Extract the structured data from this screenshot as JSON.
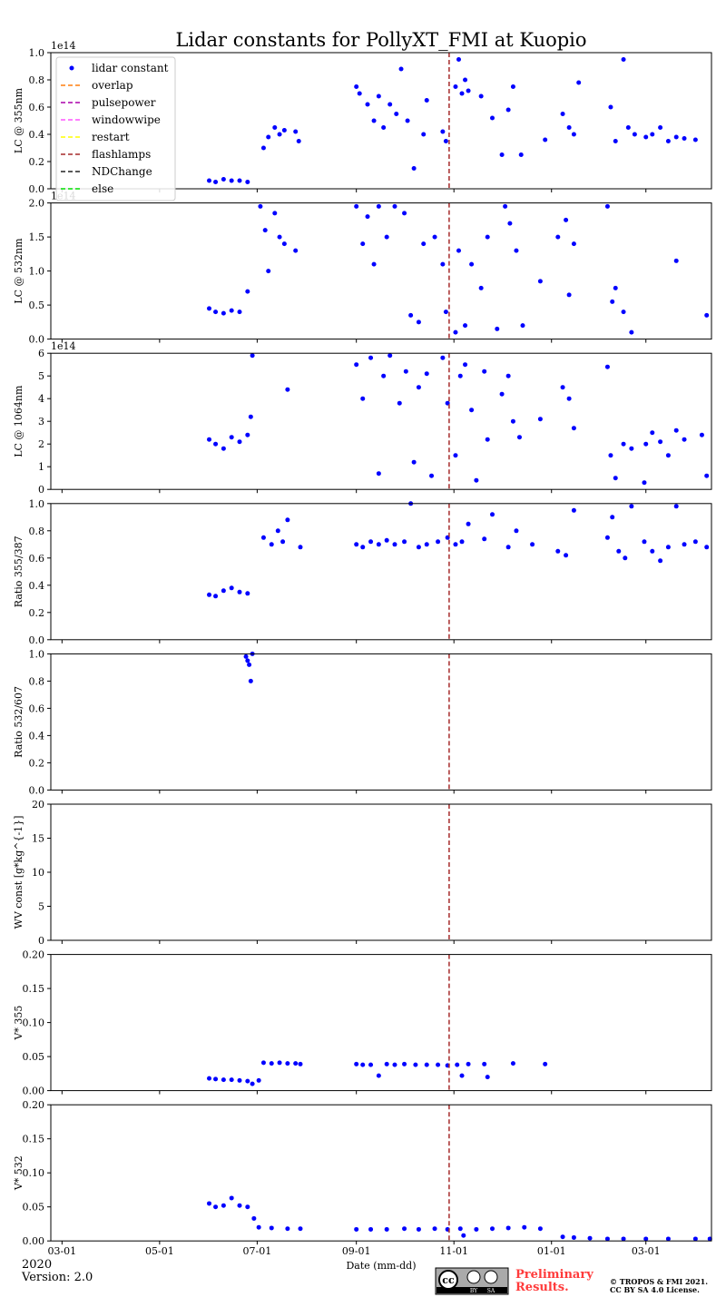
{
  "title": "Lidar constants for PollyXT_FMI at Kuopio",
  "x_axis": {
    "xlabel": "Date (mm-dd)",
    "xlim": [
      "2020-02-23",
      "2021-04-11"
    ],
    "xticks": [
      {
        "value": "2020-03-01",
        "label": "03-01"
      },
      {
        "value": "2020-05-01",
        "label": "05-01"
      },
      {
        "value": "2020-07-01",
        "label": "07-01"
      },
      {
        "value": "2020-09-01",
        "label": "09-01"
      },
      {
        "value": "2020-11-01",
        "label": "11-01"
      },
      {
        "value": "2021-01-01",
        "label": "01-01"
      },
      {
        "value": "2021-03-01",
        "label": "03-01"
      }
    ]
  },
  "legend": "upper left",
  "events": [
    {
      "name": "overlap",
      "color": "#ff7f0e",
      "x": []
    },
    {
      "name": "pulsepower",
      "color": "#aa00aa",
      "x": []
    },
    {
      "name": "windowwipe",
      "color": "#ff55ff",
      "x": []
    },
    {
      "name": "restart",
      "color": "#ffff00",
      "x": []
    },
    {
      "name": "flashlamps",
      "color": "#a52a2a",
      "x": [
        "2020-10-29"
      ]
    },
    {
      "name": "NDChange",
      "color": "#222222",
      "x": []
    },
    {
      "name": "else",
      "color": "#00dd00",
      "x": []
    }
  ],
  "chart_data": [
    {
      "type": "scatter",
      "ylabel": "LC @ 355nm",
      "offset_text": "1e14",
      "ylim": [
        0,
        1
      ],
      "yticks": [
        {
          "value": 0,
          "label": "0.0"
        },
        0.2,
        0.4,
        0.6,
        0.8,
        {
          "value": 1,
          "label": "1.0"
        }
      ],
      "series": [
        {
          "name": "lidar constant",
          "color": "#0000ff",
          "x": [
            "2020-06-01",
            "2020-06-05",
            "2020-06-10",
            "2020-06-15",
            "2020-06-20",
            "2020-06-25",
            "2020-07-05",
            "2020-07-08",
            "2020-07-12",
            "2020-07-15",
            "2020-07-18",
            "2020-07-25",
            "2020-07-27",
            "2020-09-01",
            "2020-09-03",
            "2020-09-08",
            "2020-09-12",
            "2020-09-15",
            "2020-09-18",
            "2020-09-22",
            "2020-09-26",
            "2020-09-29",
            "2020-10-03",
            "2020-10-07",
            "2020-10-13",
            "2020-10-15",
            "2020-10-25",
            "2020-10-27",
            "2020-11-02",
            "2020-11-04",
            "2020-11-06",
            "2020-11-08",
            "2020-11-10",
            "2020-11-18",
            "2020-11-25",
            "2020-12-01",
            "2020-12-05",
            "2020-12-08",
            "2020-12-13",
            "2020-12-28",
            "2021-01-08",
            "2021-01-12",
            "2021-01-15",
            "2021-01-18",
            "2021-02-07",
            "2021-02-10",
            "2021-02-15",
            "2021-02-18",
            "2021-02-22",
            "2021-03-01",
            "2021-03-05",
            "2021-03-10",
            "2021-03-15",
            "2021-03-20",
            "2021-03-25",
            "2021-04-01"
          ],
          "values": [
            0.06,
            0.05,
            0.07,
            0.06,
            0.06,
            0.05,
            0.3,
            0.38,
            0.45,
            0.4,
            0.43,
            0.42,
            0.35,
            0.75,
            0.7,
            0.62,
            0.5,
            0.68,
            0.45,
            0.62,
            0.55,
            0.88,
            0.5,
            0.15,
            0.4,
            0.65,
            0.42,
            0.35,
            0.75,
            0.95,
            0.7,
            0.8,
            0.72,
            0.68,
            0.52,
            0.25,
            0.58,
            0.75,
            0.25,
            0.36,
            0.55,
            0.45,
            0.4,
            0.78,
            0.6,
            0.35,
            0.95,
            0.45,
            0.4,
            0.38,
            0.4,
            0.45,
            0.35,
            0.38,
            0.37,
            0.36
          ]
        }
      ]
    },
    {
      "type": "scatter",
      "ylabel": "LC @ 532nm",
      "offset_text": "1e14",
      "ylim": [
        0,
        2
      ],
      "yticks": [
        {
          "value": 0,
          "label": "0.0"
        },
        0.5,
        {
          "value": 1,
          "label": "1.0"
        },
        1.5,
        {
          "value": 2,
          "label": "2.0"
        }
      ],
      "series": [
        {
          "name": "lidar constant",
          "color": "#0000ff",
          "x": [
            "2020-06-01",
            "2020-06-05",
            "2020-06-10",
            "2020-06-15",
            "2020-06-20",
            "2020-06-25",
            "2020-07-03",
            "2020-07-06",
            "2020-07-08",
            "2020-07-12",
            "2020-07-15",
            "2020-07-18",
            "2020-07-25",
            "2020-09-01",
            "2020-09-05",
            "2020-09-08",
            "2020-09-12",
            "2020-09-15",
            "2020-09-20",
            "2020-09-25",
            "2020-10-01",
            "2020-10-05",
            "2020-10-10",
            "2020-10-13",
            "2020-10-20",
            "2020-10-25",
            "2020-10-27",
            "2020-11-02",
            "2020-11-04",
            "2020-11-08",
            "2020-11-12",
            "2020-11-18",
            "2020-11-22",
            "2020-11-28",
            "2020-12-03",
            "2020-12-06",
            "2020-12-10",
            "2020-12-14",
            "2020-12-25",
            "2021-01-05",
            "2021-01-10",
            "2021-01-12",
            "2021-01-15",
            "2021-02-05",
            "2021-02-08",
            "2021-02-10",
            "2021-02-15",
            "2021-02-20",
            "2021-03-20",
            "2021-04-08"
          ],
          "values": [
            0.45,
            0.4,
            0.38,
            0.42,
            0.4,
            0.7,
            1.95,
            1.6,
            1.0,
            1.85,
            1.5,
            1.4,
            1.3,
            1.95,
            1.4,
            1.8,
            1.1,
            1.95,
            1.5,
            1.95,
            1.85,
            0.35,
            0.25,
            1.4,
            1.5,
            1.1,
            0.4,
            0.1,
            1.3,
            0.2,
            1.1,
            0.75,
            1.5,
            0.15,
            1.95,
            1.7,
            1.3,
            0.2,
            0.85,
            1.5,
            1.75,
            0.65,
            1.4,
            1.95,
            0.55,
            0.75,
            0.4,
            0.1,
            1.15,
            0.35
          ]
        }
      ]
    },
    {
      "type": "scatter",
      "ylabel": "LC @ 1064nm",
      "offset_text": "1e14",
      "ylim": [
        0,
        6
      ],
      "yticks": [
        0,
        1,
        2,
        3,
        4,
        5,
        6
      ],
      "series": [
        {
          "name": "lidar constant",
          "color": "#0000ff",
          "x": [
            "2020-06-01",
            "2020-06-05",
            "2020-06-10",
            "2020-06-15",
            "2020-06-20",
            "2020-06-25",
            "2020-06-27",
            "2020-06-28",
            "2020-07-20",
            "2020-09-01",
            "2020-09-05",
            "2020-09-10",
            "2020-09-15",
            "2020-09-18",
            "2020-09-22",
            "2020-09-28",
            "2020-10-02",
            "2020-10-07",
            "2020-10-10",
            "2020-10-15",
            "2020-10-18",
            "2020-10-25",
            "2020-10-28",
            "2020-11-02",
            "2020-11-05",
            "2020-11-08",
            "2020-11-12",
            "2020-11-15",
            "2020-11-20",
            "2020-11-22",
            "2020-12-01",
            "2020-12-05",
            "2020-12-08",
            "2020-12-12",
            "2020-12-25",
            "2021-01-08",
            "2021-01-12",
            "2021-01-15",
            "2021-02-05",
            "2021-02-07",
            "2021-02-10",
            "2021-02-15",
            "2021-02-20",
            "2021-02-28",
            "2021-03-01",
            "2021-03-05",
            "2021-03-10",
            "2021-03-15",
            "2021-03-20",
            "2021-03-25",
            "2021-04-05",
            "2021-04-08"
          ],
          "values": [
            2.2,
            2.0,
            1.8,
            2.3,
            2.1,
            2.4,
            3.2,
            5.9,
            4.4,
            5.5,
            4.0,
            5.8,
            0.7,
            5.0,
            5.9,
            3.8,
            5.2,
            1.2,
            4.5,
            5.1,
            0.6,
            5.8,
            3.8,
            1.5,
            5.0,
            5.5,
            3.5,
            0.4,
            5.2,
            2.2,
            4.2,
            5.0,
            3.0,
            2.3,
            3.1,
            4.5,
            4.0,
            2.7,
            5.4,
            1.5,
            0.5,
            2.0,
            1.8,
            0.3,
            2.0,
            2.5,
            2.1,
            1.5,
            2.6,
            2.2,
            2.4,
            0.6
          ]
        }
      ]
    },
    {
      "type": "scatter",
      "ylabel": "Ratio 355/387",
      "ylim": [
        0,
        1
      ],
      "yticks": [
        {
          "value": 0,
          "label": "0.0"
        },
        0.2,
        0.4,
        0.6,
        0.8,
        {
          "value": 1,
          "label": "1.0"
        }
      ],
      "series": [
        {
          "name": "lidar constant",
          "color": "#0000ff",
          "x": [
            "2020-06-01",
            "2020-06-05",
            "2020-06-10",
            "2020-06-15",
            "2020-06-20",
            "2020-06-25",
            "2020-07-05",
            "2020-07-10",
            "2020-07-14",
            "2020-07-17",
            "2020-07-20",
            "2020-07-28",
            "2020-09-01",
            "2020-09-05",
            "2020-09-10",
            "2020-09-15",
            "2020-09-20",
            "2020-09-25",
            "2020-10-01",
            "2020-10-05",
            "2020-10-10",
            "2020-10-15",
            "2020-10-22",
            "2020-10-28",
            "2020-11-02",
            "2020-11-06",
            "2020-11-10",
            "2020-11-20",
            "2020-11-25",
            "2020-12-05",
            "2020-12-10",
            "2020-12-20",
            "2021-01-05",
            "2021-01-10",
            "2021-01-15",
            "2021-02-05",
            "2021-02-08",
            "2021-02-12",
            "2021-02-16",
            "2021-02-20",
            "2021-02-28",
            "2021-03-05",
            "2021-03-10",
            "2021-03-15",
            "2021-03-20",
            "2021-03-25",
            "2021-04-01",
            "2021-04-08"
          ],
          "values": [
            0.33,
            0.32,
            0.36,
            0.38,
            0.35,
            0.34,
            0.75,
            0.7,
            0.8,
            0.72,
            0.88,
            0.68,
            0.7,
            0.68,
            0.72,
            0.7,
            0.73,
            0.7,
            0.72,
            1.0,
            0.68,
            0.7,
            0.72,
            0.75,
            0.7,
            0.72,
            0.85,
            0.74,
            0.92,
            0.68,
            0.8,
            0.7,
            0.65,
            0.62,
            0.95,
            0.75,
            0.9,
            0.65,
            0.6,
            0.98,
            0.72,
            0.65,
            0.58,
            0.68,
            0.98,
            0.7,
            0.72,
            0.68
          ]
        }
      ]
    },
    {
      "type": "scatter",
      "ylabel": "Ratio 532/607",
      "ylim": [
        0,
        1
      ],
      "yticks": [
        {
          "value": 0,
          "label": "0.0"
        },
        0.2,
        0.4,
        0.6,
        0.8,
        {
          "value": 1,
          "label": "1.0"
        }
      ],
      "series": [
        {
          "name": "lidar constant",
          "color": "#0000ff",
          "x": [
            "2020-06-24",
            "2020-06-25",
            "2020-06-26",
            "2020-06-27",
            "2020-06-28"
          ],
          "values": [
            0.98,
            0.95,
            0.92,
            0.8,
            1.0
          ]
        }
      ]
    },
    {
      "type": "scatter",
      "ylabel": "WV const [g*kg^{-1}]",
      "ylim": [
        0,
        20
      ],
      "yticks": [
        0,
        5,
        10,
        15,
        20
      ],
      "series": [
        {
          "name": "lidar constant",
          "color": "#0000ff",
          "x": [],
          "values": []
        }
      ]
    },
    {
      "type": "scatter",
      "ylabel": "V* 355",
      "ylim": [
        0,
        0.2
      ],
      "yticks": [
        {
          "value": 0,
          "label": "0.00"
        },
        0.05,
        {
          "value": 0.1,
          "label": "0.10"
        },
        0.15,
        {
          "value": 0.2,
          "label": "0.20"
        }
      ],
      "series": [
        {
          "name": "lidar constant",
          "color": "#0000ff",
          "x": [
            "2020-06-01",
            "2020-06-05",
            "2020-06-10",
            "2020-06-15",
            "2020-06-20",
            "2020-06-25",
            "2020-06-28",
            "2020-07-02",
            "2020-07-05",
            "2020-07-10",
            "2020-07-15",
            "2020-07-20",
            "2020-07-25",
            "2020-07-28",
            "2020-09-01",
            "2020-09-05",
            "2020-09-10",
            "2020-09-15",
            "2020-09-20",
            "2020-09-25",
            "2020-10-01",
            "2020-10-08",
            "2020-10-15",
            "2020-10-22",
            "2020-10-28",
            "2020-11-03",
            "2020-11-06",
            "2020-11-10",
            "2020-11-20",
            "2020-11-22",
            "2020-12-08",
            "2020-12-28"
          ],
          "values": [
            0.018,
            0.017,
            0.016,
            0.016,
            0.015,
            0.014,
            0.01,
            0.015,
            0.041,
            0.04,
            0.041,
            0.04,
            0.04,
            0.039,
            0.039,
            0.038,
            0.038,
            0.022,
            0.039,
            0.038,
            0.039,
            0.038,
            0.038,
            0.038,
            0.037,
            0.038,
            0.022,
            0.039,
            0.039,
            0.02,
            0.04,
            0.039
          ]
        }
      ]
    },
    {
      "type": "scatter",
      "ylabel": "V* 532",
      "ylim": [
        0,
        0.2
      ],
      "yticks": [
        {
          "value": 0,
          "label": "0.00"
        },
        0.05,
        {
          "value": 0.1,
          "label": "0.10"
        },
        0.15,
        {
          "value": 0.2,
          "label": "0.20"
        }
      ],
      "series": [
        {
          "name": "lidar constant",
          "color": "#0000ff",
          "x": [
            "2020-06-01",
            "2020-06-05",
            "2020-06-10",
            "2020-06-15",
            "2020-06-20",
            "2020-06-25",
            "2020-06-29",
            "2020-07-02",
            "2020-07-10",
            "2020-07-20",
            "2020-07-28",
            "2020-09-01",
            "2020-09-10",
            "2020-09-20",
            "2020-10-01",
            "2020-10-10",
            "2020-10-20",
            "2020-10-28",
            "2020-11-05",
            "2020-11-07",
            "2020-11-15",
            "2020-11-25",
            "2020-12-05",
            "2020-12-15",
            "2020-12-25",
            "2021-01-08",
            "2021-01-15",
            "2021-01-25",
            "2021-02-05",
            "2021-02-15",
            "2021-03-01",
            "2021-03-15",
            "2021-04-01",
            "2021-04-10"
          ],
          "values": [
            0.055,
            0.05,
            0.052,
            0.063,
            0.052,
            0.05,
            0.033,
            0.02,
            0.019,
            0.018,
            0.018,
            0.017,
            0.017,
            0.017,
            0.018,
            0.017,
            0.018,
            0.017,
            0.018,
            0.008,
            0.017,
            0.018,
            0.019,
            0.02,
            0.018,
            0.006,
            0.005,
            0.004,
            0.003,
            0.003,
            0.003,
            0.003,
            0.003,
            0.003
          ]
        }
      ]
    }
  ],
  "footer": {
    "year": "2020",
    "version": "Version: 2.0",
    "badge": [
      "cc",
      "BY",
      "SA"
    ],
    "preliminary": [
      "Preliminary",
      "Results."
    ],
    "copyright": [
      "© TROPOS & FMI 2021.",
      "CC BY SA 4.0 License."
    ]
  }
}
